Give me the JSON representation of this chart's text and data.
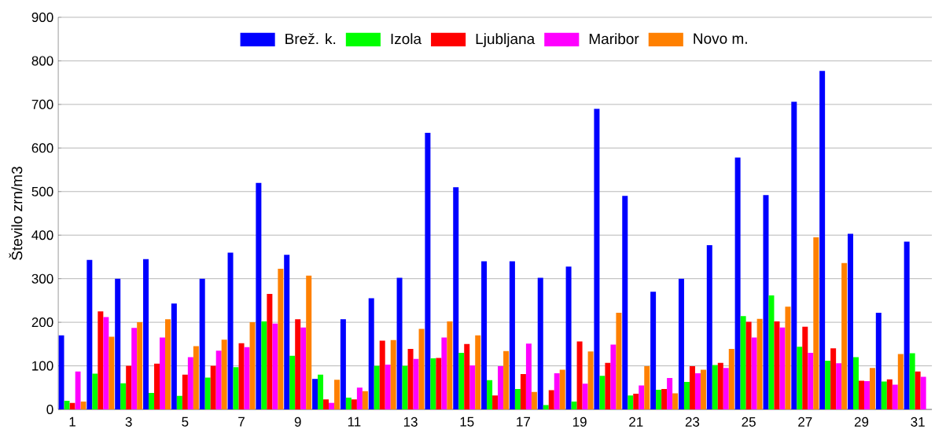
{
  "chart_data": {
    "type": "bar",
    "ylabel": "Število zrn/m3",
    "categories": [
      "1",
      null,
      "3",
      null,
      "5",
      null,
      "7",
      null,
      "9",
      null,
      "11",
      null,
      "13",
      null,
      "15",
      null,
      "17",
      null,
      "19",
      null,
      "21",
      null,
      "23",
      null,
      "25",
      null,
      "27",
      null,
      "29",
      null,
      "31"
    ],
    "ylim": [
      0,
      900
    ],
    "yticks": [
      0,
      100,
      200,
      300,
      400,
      500,
      600,
      700,
      800,
      900
    ],
    "grid": "y",
    "legend": "top",
    "series": [
      {
        "name": "Brež. k.",
        "color": "#0000ff",
        "values": [
          170,
          343,
          300,
          345,
          243,
          300,
          360,
          520,
          355,
          70,
          207,
          255,
          302,
          635,
          510,
          340,
          340,
          302,
          328,
          690,
          490,
          270,
          300,
          377,
          578,
          492,
          706,
          777,
          403,
          222,
          385
        ]
      },
      {
        "name": "Izola",
        "color": "#00ff00",
        "values": [
          20,
          82,
          60,
          38,
          31,
          73,
          97,
          202,
          123,
          80,
          27,
          100,
          100,
          117,
          130,
          67,
          47,
          10,
          18,
          77,
          32,
          45,
          63,
          102,
          214,
          262,
          144,
          112,
          120,
          64,
          129
        ]
      },
      {
        "name": "Ljubljana",
        "color": "#ff0000",
        "values": [
          15,
          225,
          100,
          105,
          80,
          100,
          152,
          265,
          207,
          23,
          23,
          158,
          139,
          118,
          150,
          32,
          81,
          44,
          156,
          107,
          36,
          47,
          99,
          107,
          201,
          202,
          190,
          140,
          66,
          69,
          87
        ]
      },
      {
        "name": "Maribor",
        "color": "#ff00ff",
        "values": [
          87,
          212,
          187,
          165,
          120,
          135,
          143,
          197,
          188,
          15,
          50,
          103,
          116,
          165,
          101,
          99,
          151,
          83,
          59,
          149,
          55,
          72,
          83,
          95,
          165,
          188,
          130,
          106,
          65,
          57,
          75
        ]
      },
      {
        "name": "Novo m.",
        "color": "#ff8000",
        "values": [
          18,
          167,
          200,
          207,
          145,
          160,
          200,
          323,
          307,
          68,
          42,
          159,
          185,
          202,
          170,
          134,
          40,
          91,
          133,
          222,
          99,
          37,
          91,
          139,
          208,
          236,
          395,
          336,
          95,
          127,
          null
        ]
      }
    ]
  }
}
